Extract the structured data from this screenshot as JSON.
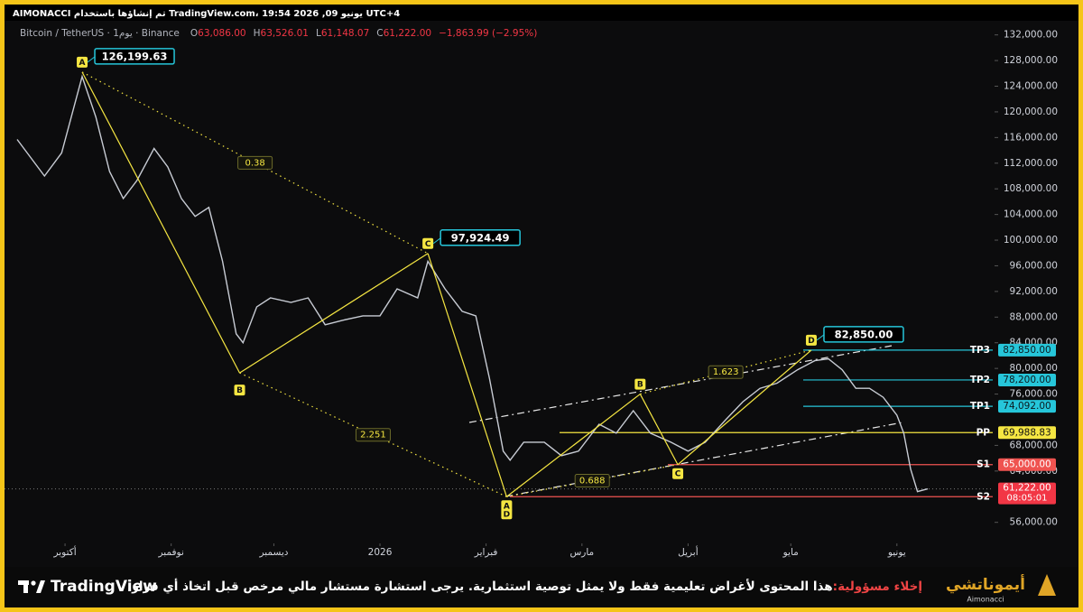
{
  "header": {
    "caption": "AIMONACCI تم إنشاؤها باستخدام TradingView.com، يونيو 09, 2026 19:54 UTC+4",
    "symbol": "Bitcoin / TetherUS · 1يوم · Binance",
    "ohlc": [
      {
        "key": "O",
        "text": "63,086.00"
      },
      {
        "key": "H",
        "text": "63,526.01"
      },
      {
        "key": "L",
        "text": "61,148.07"
      },
      {
        "key": "C",
        "text": "61,222.00"
      }
    ],
    "change": "−1,863.99 (−2.95%)"
  },
  "chart_data": {
    "type": "line",
    "color": "#c8ccd4",
    "x": [
      -14,
      -6,
      -1,
      5,
      9,
      13,
      17,
      21,
      26,
      30,
      34,
      38,
      42,
      46,
      50,
      52,
      56,
      60,
      66,
      71,
      76,
      81,
      87,
      92,
      97,
      103,
      106,
      111,
      116,
      120,
      124,
      128,
      130,
      134,
      140,
      145,
      150,
      156,
      161,
      166,
      171,
      177,
      182,
      187,
      193,
      198,
      203,
      208,
      214,
      219,
      223,
      227,
      231,
      235,
      239,
      243,
      245,
      247,
      249,
      252
    ],
    "values": [
      115700,
      110000,
      113600,
      125500,
      119200,
      110700,
      106500,
      109300,
      114300,
      111400,
      106500,
      103700,
      105100,
      96700,
      85400,
      84000,
      89600,
      91000,
      90300,
      91000,
      86800,
      87500,
      88200,
      88200,
      92400,
      91000,
      96700,
      92400,
      88900,
      88200,
      78400,
      67100,
      65700,
      68500,
      68500,
      66400,
      67100,
      71300,
      69900,
      73400,
      69900,
      68500,
      67100,
      68500,
      72000,
      74800,
      76900,
      77700,
      79800,
      81200,
      81500,
      79800,
      76900,
      76900,
      75500,
      72700,
      69900,
      64300,
      60800,
      61222
    ],
    "xlim": [
      -19,
      271
    ],
    "xticks": [
      {
        "value": 0,
        "label": "أكتوبر"
      },
      {
        "value": 31,
        "label": "نوفمبر"
      },
      {
        "value": 61,
        "label": "ديسمبر"
      },
      {
        "value": 92,
        "label": "2026"
      },
      {
        "value": 123,
        "label": "فبراير"
      },
      {
        "value": 151,
        "label": "مارس"
      },
      {
        "value": 182,
        "label": "أبريل"
      },
      {
        "value": 212,
        "label": "مايو"
      },
      {
        "value": 243,
        "label": "يونيو"
      }
    ],
    "ylim": [
      53000,
      133500
    ],
    "yticks": [
      {
        "value": 132000,
        "label": "132,000.00"
      },
      {
        "value": 128000,
        "label": "128,000.00"
      },
      {
        "value": 124000,
        "label": "124,000.00"
      },
      {
        "value": 120000,
        "label": "120,000.00"
      },
      {
        "value": 116000,
        "label": "116,000.00"
      },
      {
        "value": 112000,
        "label": "112,000.00"
      },
      {
        "value": 108000,
        "label": "108,000.00"
      },
      {
        "value": 104000,
        "label": "104,000.00"
      },
      {
        "value": 100000,
        "label": "100,000.00"
      },
      {
        "value": 96000,
        "label": "96,000.00"
      },
      {
        "value": 92000,
        "label": "92,000.00"
      },
      {
        "value": 88000,
        "label": "88,000.00"
      },
      {
        "value": 84000,
        "label": "84,000.00"
      },
      {
        "value": 80000,
        "label": "80,000.00"
      },
      {
        "value": 76000,
        "label": "76,000.00"
      },
      {
        "value": 68000,
        "label": "68,000.00"
      },
      {
        "value": 64000,
        "label": "64,000.00"
      },
      {
        "value": 56000,
        "label": "56,000.00"
      }
    ],
    "pattern_color": "#f5e642",
    "patterns": [
      {
        "points": [
          {
            "label": "A",
            "x": 5,
            "value": 126199.63,
            "value_label": "126,199.63"
          },
          {
            "label": "B",
            "x": 51,
            "value": 79300
          },
          {
            "label": "C",
            "x": 106,
            "value": 97924.49,
            "value_label": "97,924.49"
          },
          {
            "label": "D",
            "x": 129,
            "value": 60000
          }
        ],
        "ratios": [
          0.38,
          2.251
        ]
      },
      {
        "points": [
          {
            "label": "A",
            "x": 129,
            "value": 60000
          },
          {
            "label": "B",
            "x": 168,
            "value": 76000
          },
          {
            "label": "C",
            "x": 179,
            "value": 65000
          },
          {
            "label": "D",
            "x": 218,
            "value": 82850,
            "value_label": "82,850.00"
          }
        ],
        "ratios": [
          0.688,
          1.623
        ]
      }
    ],
    "levels": [
      {
        "label": "TP3",
        "value": 82850,
        "value_label": "82,850.00",
        "color": "#26c6da",
        "text_color": "#0b1a20"
      },
      {
        "label": "TP2",
        "value": 78200,
        "value_label": "78,200.00",
        "color": "#26c6da",
        "text_color": "#0b1a20"
      },
      {
        "label": "TP1",
        "value": 74092,
        "value_label": "74,092.00",
        "color": "#26c6da",
        "text_color": "#0b1a20"
      },
      {
        "label": "PP",
        "value": 69988.83,
        "value_label": "69,988.83",
        "color": "#f5e642",
        "text_color": "#111111"
      },
      {
        "label": "S1",
        "value": 65000,
        "value_label": "65,000.00",
        "color": "#ef5350",
        "text_color": "#ffffff"
      },
      {
        "label": "S2",
        "value": 60000,
        "value_label": "60,000.00",
        "color": "#ef5350",
        "text_color": "#ffffff"
      }
    ],
    "last": {
      "value": 61222,
      "value_label": "61,222.00",
      "countdown": "08:05:01",
      "color": "#f23645"
    }
  },
  "footer": {
    "logo": "TradingView",
    "disclaimer_title": "إخلاء مسؤولية:",
    "disclaimer": "هذا المحتوى لأغراض تعليمية فقط ولا يمثل توصية استثمارية. يرجى استشارة مستشار مالي مرخص قبل اتخاذ أي قرار.",
    "brand": "أيموناتشي",
    "brand_latin": "Aimonacci"
  }
}
